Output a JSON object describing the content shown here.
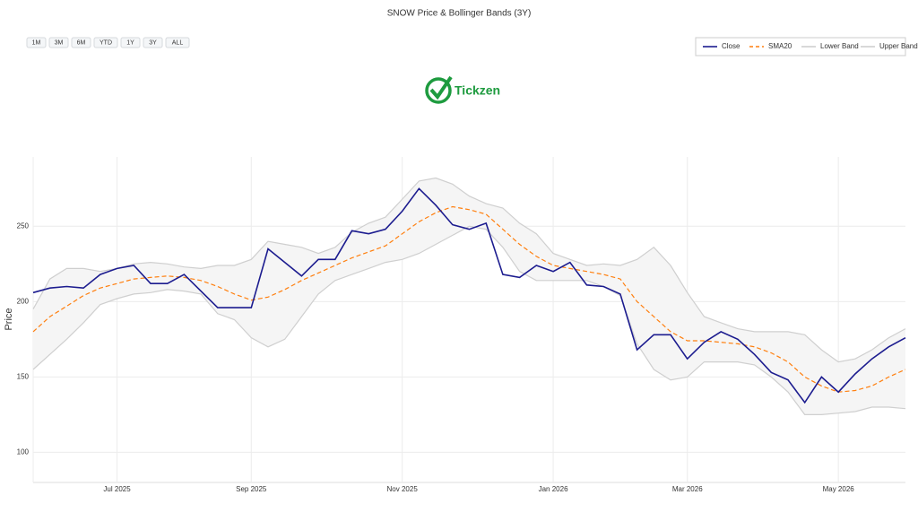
{
  "chart_data": {
    "type": "line",
    "title": "SNOW Price & Bollinger Bands (3Y)",
    "ylabel": "Price",
    "categories": [
      null,
      null,
      null,
      null,
      null,
      "Jul 2025",
      null,
      null,
      null,
      null,
      null,
      null,
      null,
      "Sep 2025",
      null,
      null,
      null,
      null,
      null,
      null,
      null,
      null,
      "Nov 2025",
      null,
      null,
      null,
      null,
      null,
      null,
      null,
      null,
      "Jan 2026",
      null,
      null,
      null,
      null,
      null,
      null,
      null,
      "Mar 2026",
      null,
      null,
      null,
      null,
      null,
      null,
      null,
      null,
      "May 2026",
      null,
      null,
      null,
      null
    ],
    "series": [
      {
        "name": "Close",
        "color": "#1c1c8f",
        "dash": false,
        "values": [
          206,
          209,
          210,
          209,
          218,
          222,
          224,
          212,
          212,
          218,
          207,
          196,
          196,
          196,
          235,
          226,
          217,
          228,
          228,
          247,
          245,
          248,
          260,
          275,
          264,
          251,
          248,
          252,
          218,
          216,
          224,
          220,
          226,
          211,
          210,
          205,
          168,
          178,
          178,
          162,
          173,
          180,
          175,
          165,
          153,
          148,
          133,
          150,
          140,
          152,
          162,
          170,
          176
        ]
      },
      {
        "name": "SMA20",
        "color": "#ff7f0e",
        "dash": true,
        "values": [
          180,
          190,
          197,
          204,
          209,
          212,
          215,
          216,
          217,
          216,
          214,
          210,
          205,
          201,
          203,
          208,
          214,
          219,
          224,
          229,
          233,
          237,
          245,
          253,
          259,
          263,
          261,
          258,
          248,
          238,
          230,
          224,
          222,
          220,
          218,
          215,
          200,
          190,
          180,
          174,
          174,
          173,
          172,
          170,
          166,
          160,
          150,
          144,
          140,
          141,
          144,
          150,
          155
        ]
      },
      {
        "name": "Lower Band",
        "color": "#cfcfcf",
        "dash": false,
        "values": [
          155,
          165,
          175,
          186,
          198,
          202,
          205,
          206,
          208,
          207,
          205,
          192,
          188,
          176,
          170,
          175,
          190,
          205,
          214,
          218,
          222,
          226,
          228,
          232,
          238,
          244,
          250,
          248,
          236,
          220,
          214,
          214,
          214,
          214,
          210,
          204,
          172,
          155,
          148,
          150,
          160,
          160,
          160,
          158,
          150,
          140,
          125,
          125,
          126,
          127,
          130,
          130,
          129
        ]
      },
      {
        "name": "Upper Band",
        "color": "#cfcfcf",
        "dash": false,
        "values": [
          195,
          215,
          222,
          222,
          220,
          222,
          225,
          226,
          225,
          223,
          222,
          224,
          224,
          228,
          240,
          238,
          236,
          232,
          236,
          246,
          252,
          256,
          268,
          280,
          282,
          278,
          270,
          265,
          262,
          252,
          245,
          232,
          228,
          224,
          225,
          224,
          228,
          236,
          224,
          206,
          190,
          186,
          182,
          180,
          180,
          180,
          178,
          168,
          160,
          162,
          168,
          176,
          182
        ]
      }
    ],
    "band_fill": "#f5f5f5",
    "ylim": [
      80,
      296
    ],
    "yticks": [
      100,
      150,
      200,
      250
    ],
    "grid": true,
    "legend": "top-right"
  },
  "range_selector": [
    "1M",
    "3M",
    "6M",
    "YTD",
    "1Y",
    "3Y",
    "ALL"
  ],
  "logo": "Tickzen"
}
